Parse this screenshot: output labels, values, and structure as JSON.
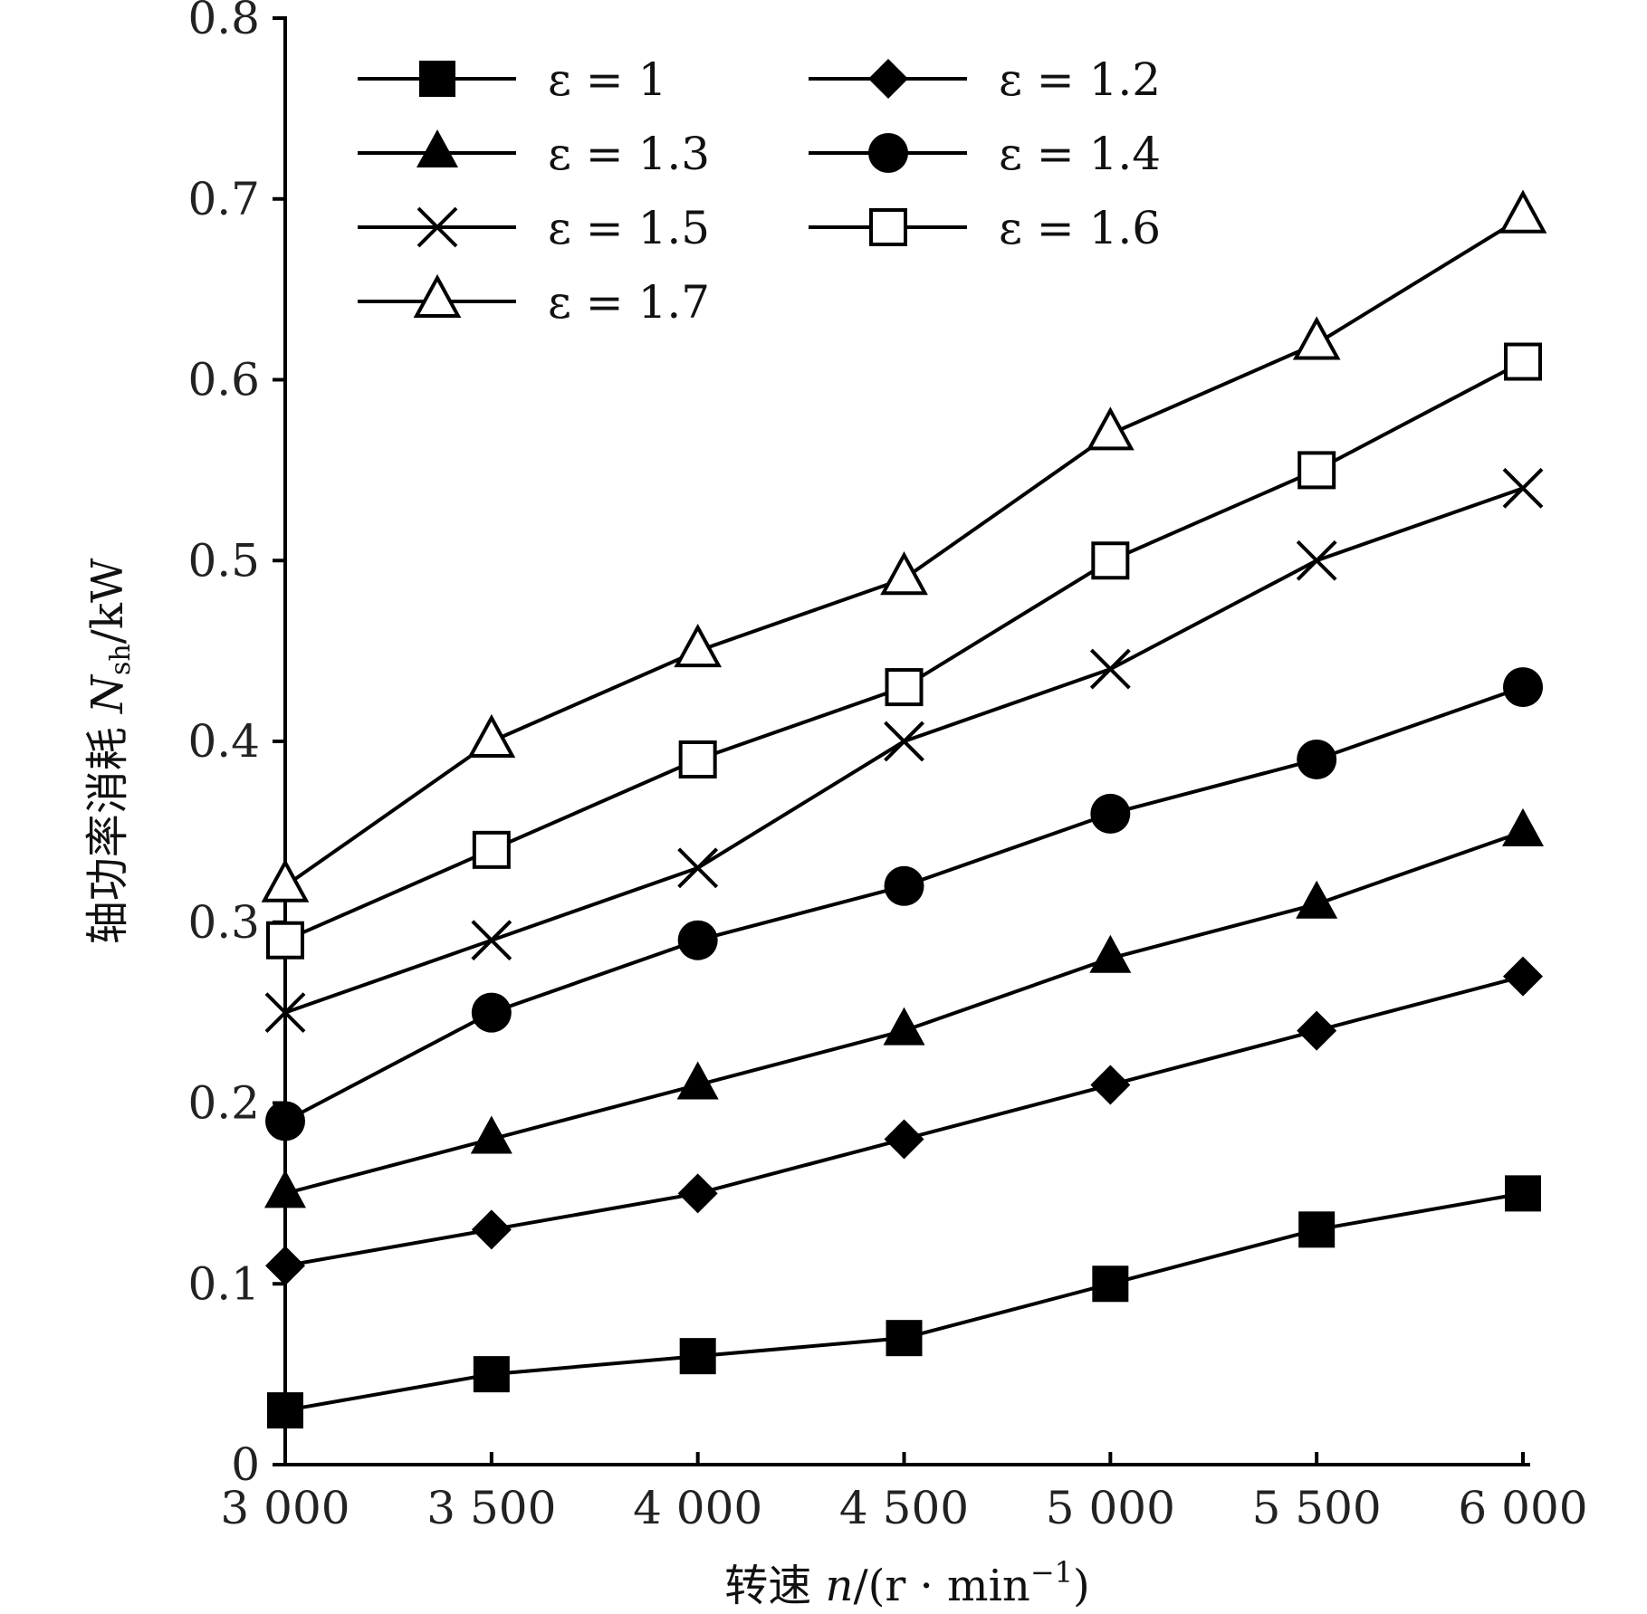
{
  "chart_data": {
    "type": "line",
    "xlabel": "转速 n/(r·min⁻¹)",
    "ylabel": "轴功率消耗 N_sh/kW",
    "xlim": [
      3000,
      6000
    ],
    "ylim": [
      0,
      0.8
    ],
    "x": [
      3000,
      3500,
      4000,
      4500,
      5000,
      5500,
      6000
    ],
    "x_tick_labels": [
      "3 000",
      "3 500",
      "4 000",
      "4 500",
      "5 000",
      "5 500",
      "6 000"
    ],
    "y_ticks": [
      0,
      0.1,
      0.2,
      0.3,
      0.4,
      0.5,
      0.6,
      0.7,
      0.8
    ],
    "y_tick_labels": [
      "0",
      "0.1",
      "0.2",
      "0.3",
      "0.4",
      "0.5",
      "0.6",
      "0.7",
      "0.8"
    ],
    "grid": false,
    "legend_position": "top-left",
    "series": [
      {
        "name": "ε = 1",
        "marker": "filled-square",
        "values": [
          0.03,
          0.05,
          0.06,
          0.07,
          0.1,
          0.13,
          0.15
        ]
      },
      {
        "name": "ε = 1.2",
        "marker": "filled-diamond",
        "values": [
          0.11,
          0.13,
          0.15,
          0.18,
          0.21,
          0.24,
          0.27
        ]
      },
      {
        "name": "ε = 1.3",
        "marker": "filled-triangle",
        "values": [
          0.15,
          0.18,
          0.21,
          0.24,
          0.28,
          0.31,
          0.35
        ]
      },
      {
        "name": "ε = 1.4",
        "marker": "filled-circle",
        "values": [
          0.19,
          0.25,
          0.29,
          0.32,
          0.36,
          0.39,
          0.43
        ]
      },
      {
        "name": "ε = 1.5",
        "marker": "cross",
        "values": [
          0.25,
          0.29,
          0.33,
          0.4,
          0.44,
          0.5,
          0.54
        ]
      },
      {
        "name": "ε = 1.6",
        "marker": "open-square",
        "values": [
          0.29,
          0.34,
          0.39,
          0.43,
          0.5,
          0.55,
          0.61
        ]
      },
      {
        "name": "ε = 1.7",
        "marker": "open-triangle",
        "values": [
          0.32,
          0.4,
          0.45,
          0.49,
          0.57,
          0.62,
          0.69
        ]
      }
    ]
  }
}
